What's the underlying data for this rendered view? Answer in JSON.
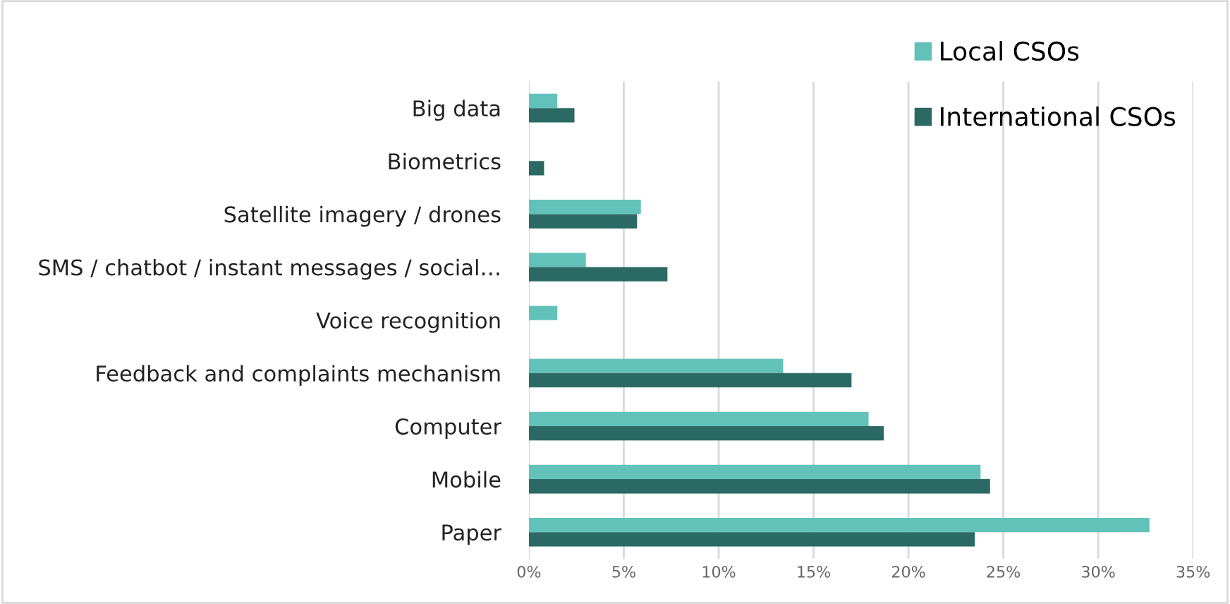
{
  "chart_data": {
    "type": "bar",
    "orientation": "horizontal",
    "categories": [
      "Big data",
      "Biometrics",
      "Satellite imagery / drones",
      "SMS / chatbot / instant messages / social…",
      "Voice recognition",
      "Feedback and complaints mechanism",
      "Computer",
      "Mobile",
      "Paper"
    ],
    "series": [
      {
        "name": "Local CSOs",
        "color": "#62c2b9",
        "values": [
          1.5,
          null,
          5.9,
          3.0,
          1.5,
          13.4,
          17.9,
          23.8,
          32.7
        ]
      },
      {
        "name": "International CSOs",
        "color": "#2a6964",
        "values": [
          2.4,
          0.8,
          5.7,
          7.3,
          null,
          17.0,
          18.7,
          24.3,
          23.5
        ]
      }
    ],
    "xlim": [
      0,
      35
    ],
    "xticks": [
      {
        "value": 0,
        "label": "0%"
      },
      {
        "value": 5,
        "label": "5%"
      },
      {
        "value": 10,
        "label": "10%"
      },
      {
        "value": 15,
        "label": "15%"
      },
      {
        "value": 20,
        "label": "20%"
      },
      {
        "value": 25,
        "label": "25%"
      },
      {
        "value": 30,
        "label": "30%"
      },
      {
        "value": 35,
        "label": "35%"
      }
    ],
    "grid": "x",
    "legend": "top right"
  }
}
